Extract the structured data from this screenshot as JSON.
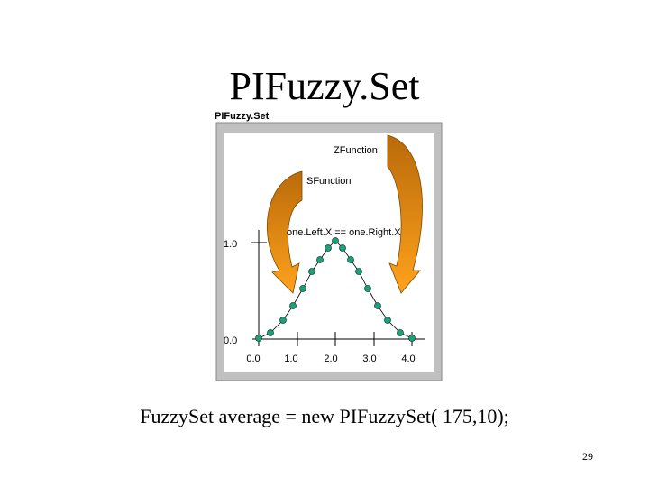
{
  "title": "PIFuzzy.Set",
  "figure": {
    "caption": "PIFuzzy.Set",
    "labels": [
      "ZFunction",
      "SFunction",
      "one.Left.X == one.Right.X"
    ],
    "y_labels": [
      "1.0",
      "0.0"
    ],
    "x_labels": [
      "0.0",
      "1.0",
      "2.0",
      "3.0",
      "4.0"
    ]
  },
  "code": "FuzzySet average = new PIFuzzySet( 175,10);",
  "page_number": "29"
}
